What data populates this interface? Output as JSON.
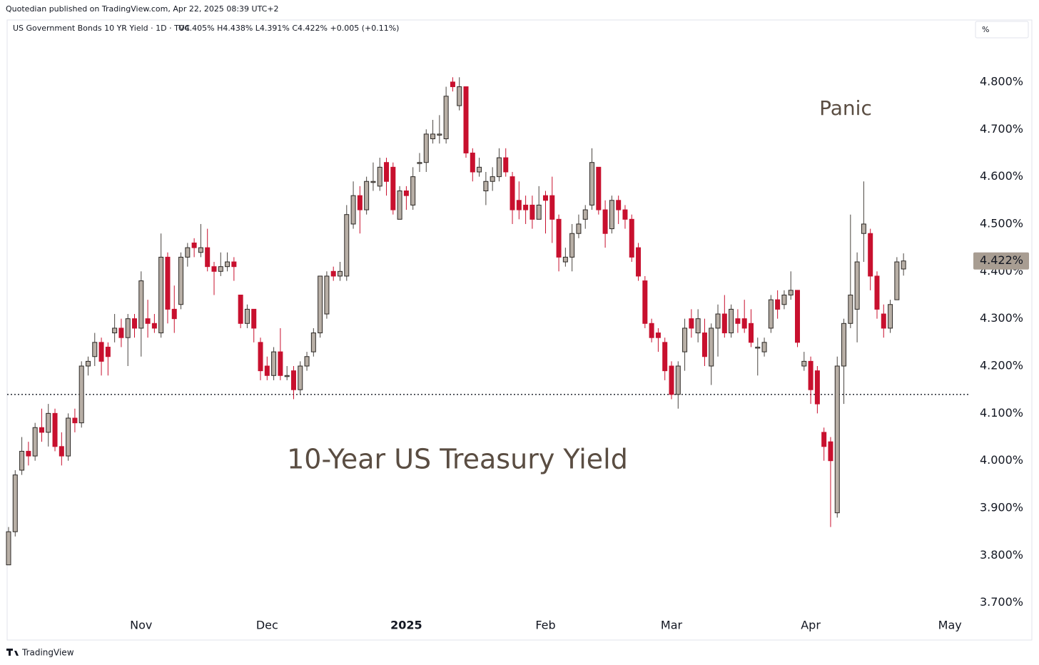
{
  "chart_data": {
    "type": "candlestick",
    "publisher": "Quotedian published on TradingView.com, Apr 22, 2025 08:39 UTC+2",
    "title": "US Government Bonds 10 YR Yield · 1D · TVC",
    "ohlc_summary": "O4.405% H4.438% L4.391% C4.422% +0.005 (+0.11%)",
    "unit": "%",
    "annotations": [
      "Panic",
      "10-Year US Treasury Yield"
    ],
    "footer": "TradingView",
    "up_color": "#b8afa6",
    "down_color": "#c8102e",
    "reference_line": 4.14,
    "last_price": {
      "value": 4.422,
      "label": "4.422%"
    },
    "ylim": [
      3.674,
      4.931
    ],
    "yticks": [
      {
        "value": 3.7,
        "label": "3.700%"
      },
      {
        "value": 3.8,
        "label": "3.800%"
      },
      {
        "value": 3.9,
        "label": "3.900%"
      },
      {
        "value": 4.0,
        "label": "4.000%"
      },
      {
        "value": 4.1,
        "label": "4.100%"
      },
      {
        "value": 4.2,
        "label": "4.200%"
      },
      {
        "value": 4.3,
        "label": "4.300%"
      },
      {
        "value": 4.4,
        "label": "4.400%"
      },
      {
        "value": 4.5,
        "label": "4.500%"
      },
      {
        "value": 4.6,
        "label": "4.600%"
      },
      {
        "value": 4.7,
        "label": "4.700%"
      },
      {
        "value": 4.8,
        "label": "4.800%"
      }
    ],
    "categories": [
      null,
      null,
      null,
      null,
      null,
      null,
      null,
      null,
      null,
      null,
      null,
      null,
      null,
      null,
      null,
      null,
      null,
      null,
      null,
      null,
      "Nov",
      null,
      null,
      null,
      null,
      null,
      null,
      null,
      null,
      null,
      null,
      null,
      null,
      null,
      null,
      null,
      null,
      null,
      null,
      "Dec",
      null,
      null,
      null,
      null,
      null,
      null,
      null,
      null,
      null,
      null,
      null,
      null,
      null,
      null,
      null,
      null,
      null,
      null,
      null,
      null,
      "2025",
      null,
      null,
      null,
      null,
      null,
      null,
      null,
      null,
      null,
      null,
      null,
      null,
      null,
      null,
      null,
      null,
      null,
      null,
      null,
      null,
      "Feb",
      null,
      null,
      null,
      null,
      null,
      null,
      null,
      null,
      null,
      null,
      null,
      null,
      null,
      null,
      null,
      null,
      null,
      null,
      "Mar",
      null,
      null,
      null,
      null,
      null,
      null,
      null,
      null,
      null,
      null,
      null,
      null,
      null,
      null,
      null,
      null,
      null,
      null,
      null,
      null,
      "Apr",
      null,
      null,
      null,
      null,
      null,
      null,
      null,
      null,
      null,
      null,
      null,
      null,
      null,
      null
    ],
    "future_categories": [
      "May"
    ],
    "open": [
      3.78,
      3.85,
      3.98,
      4.02,
      4.01,
      4.07,
      4.06,
      4.1,
      4.03,
      4.01,
      4.09,
      4.08,
      4.2,
      4.22,
      4.25,
      4.24,
      4.27,
      4.28,
      4.26,
      4.3,
      4.28,
      4.3,
      4.29,
      4.27,
      4.43,
      4.32,
      4.33,
      4.43,
      4.46,
      4.44,
      4.45,
      4.41,
      4.4,
      4.41,
      4.42,
      4.35,
      4.29,
      4.32,
      4.25,
      4.2,
      4.18,
      4.23,
      4.18,
      4.19,
      4.15,
      4.2,
      4.23,
      4.27,
      4.31,
      4.4,
      4.39,
      4.39,
      4.5,
      4.56,
      4.53,
      4.59,
      4.58,
      4.63,
      4.62,
      4.51,
      4.57,
      4.54,
      4.63,
      4.63,
      4.68,
      4.69,
      4.68,
      4.8,
      4.75,
      4.79,
      4.65,
      4.61,
      4.57,
      4.59,
      4.6,
      4.64,
      4.6,
      4.55,
      4.54,
      4.54,
      4.51,
      4.56,
      4.56,
      4.51,
      4.42,
      4.43,
      4.48,
      4.51,
      4.54,
      4.62,
      4.53,
      4.49,
      4.55,
      4.53,
      4.51,
      4.45,
      4.38,
      4.29,
      4.27,
      4.25,
      4.2,
      4.14,
      4.23,
      4.3,
      4.27,
      4.27,
      4.2,
      4.28,
      4.31,
      4.27,
      4.3,
      4.3,
      4.29,
      4.24,
      4.23,
      4.28,
      4.34,
      4.33,
      4.35,
      4.36,
      4.2,
      4.21,
      4.19,
      4.06,
      4.04,
      3.89,
      4.2,
      4.29,
      4.32,
      4.48,
      4.48,
      4.39,
      4.31,
      4.28,
      4.34,
      4.405
    ],
    "high": [
      3.86,
      3.98,
      4.05,
      4.04,
      4.08,
      4.11,
      4.12,
      4.11,
      4.06,
      4.1,
      4.11,
      4.21,
      4.22,
      4.27,
      4.26,
      4.25,
      4.31,
      4.3,
      4.31,
      4.31,
      4.4,
      4.34,
      4.31,
      4.48,
      4.44,
      4.37,
      4.44,
      4.46,
      4.47,
      4.5,
      4.49,
      4.42,
      4.44,
      4.44,
      4.43,
      4.35,
      4.33,
      4.32,
      4.26,
      4.22,
      4.24,
      4.28,
      4.2,
      4.2,
      4.21,
      4.23,
      4.28,
      4.39,
      4.4,
      4.41,
      4.42,
      4.54,
      4.59,
      4.58,
      4.6,
      4.63,
      4.64,
      4.64,
      4.63,
      4.58,
      4.58,
      4.62,
      4.65,
      4.7,
      4.72,
      4.73,
      4.79,
      4.81,
      4.81,
      4.79,
      4.66,
      4.64,
      4.61,
      4.62,
      4.66,
      4.66,
      4.61,
      4.59,
      4.56,
      4.56,
      4.58,
      4.57,
      4.6,
      4.52,
      4.45,
      4.5,
      4.52,
      4.54,
      4.66,
      4.62,
      4.55,
      4.56,
      4.56,
      4.54,
      4.52,
      4.46,
      4.39,
      4.3,
      4.28,
      4.26,
      4.21,
      4.21,
      4.3,
      4.32,
      4.32,
      4.3,
      4.29,
      4.33,
      4.35,
      4.33,
      4.32,
      4.34,
      4.32,
      4.26,
      4.26,
      4.35,
      4.36,
      4.36,
      4.4,
      4.36,
      4.23,
      4.22,
      4.2,
      4.07,
      4.05,
      4.22,
      4.3,
      4.52,
      4.44,
      4.59,
      4.49,
      4.4,
      4.33,
      4.34,
      4.43,
      4.438
    ],
    "low": [
      3.78,
      3.84,
      3.97,
      3.99,
      4.0,
      4.04,
      4.03,
      4.02,
      3.99,
      4.0,
      4.06,
      4.07,
      4.18,
      4.2,
      4.18,
      4.18,
      4.25,
      4.24,
      4.2,
      4.26,
      4.22,
      4.26,
      4.27,
      4.26,
      4.29,
      4.27,
      4.32,
      4.41,
      4.43,
      4.43,
      4.4,
      4.35,
      4.39,
      4.4,
      4.38,
      4.28,
      4.28,
      4.25,
      4.17,
      4.17,
      4.17,
      4.17,
      4.17,
      4.13,
      4.14,
      4.19,
      4.22,
      4.26,
      4.3,
      4.38,
      4.38,
      4.38,
      4.49,
      4.48,
      4.52,
      4.57,
      4.57,
      4.56,
      4.52,
      4.51,
      4.53,
      4.53,
      4.61,
      4.61,
      4.67,
      4.67,
      4.67,
      4.78,
      4.74,
      4.64,
      4.59,
      4.6,
      4.54,
      4.57,
      4.59,
      4.6,
      4.5,
      4.51,
      4.5,
      4.49,
      4.51,
      4.48,
      4.46,
      4.4,
      4.41,
      4.4,
      4.47,
      4.49,
      4.53,
      4.52,
      4.45,
      4.48,
      4.5,
      4.49,
      4.42,
      4.38,
      4.28,
      4.25,
      4.23,
      4.17,
      4.13,
      4.11,
      4.19,
      4.26,
      4.25,
      4.2,
      4.16,
      4.22,
      4.26,
      4.26,
      4.27,
      4.27,
      4.24,
      4.18,
      4.22,
      4.27,
      4.3,
      4.32,
      4.34,
      4.24,
      4.19,
      4.12,
      4.1,
      4.0,
      3.86,
      3.88,
      4.12,
      4.28,
      4.25,
      4.42,
      4.36,
      4.3,
      4.26,
      4.27,
      4.34,
      4.391
    ],
    "close": [
      3.85,
      3.97,
      4.02,
      4.01,
      4.07,
      4.06,
      4.1,
      4.03,
      4.01,
      4.09,
      4.08,
      4.2,
      4.21,
      4.25,
      4.21,
      4.22,
      4.28,
      4.26,
      4.3,
      4.28,
      4.38,
      4.29,
      4.28,
      4.43,
      4.32,
      4.3,
      4.43,
      4.45,
      4.45,
      4.45,
      4.41,
      4.4,
      4.41,
      4.42,
      4.41,
      4.29,
      4.32,
      4.28,
      4.19,
      4.18,
      4.23,
      4.18,
      4.18,
      4.15,
      4.2,
      4.22,
      4.27,
      4.39,
      4.39,
      4.39,
      4.4,
      4.52,
      4.56,
      4.53,
      4.59,
      4.59,
      4.62,
      4.59,
      4.53,
      4.57,
      4.56,
      4.6,
      4.63,
      4.69,
      4.69,
      4.69,
      4.77,
      4.79,
      4.79,
      4.65,
      4.61,
      4.62,
      4.59,
      4.6,
      4.64,
      4.61,
      4.53,
      4.53,
      4.53,
      4.51,
      4.54,
      4.55,
      4.51,
      4.43,
      4.43,
      4.48,
      4.5,
      4.53,
      4.63,
      4.53,
      4.48,
      4.55,
      4.53,
      4.51,
      4.43,
      4.39,
      4.29,
      4.26,
      4.26,
      4.19,
      4.14,
      4.2,
      4.28,
      4.28,
      4.3,
      4.22,
      4.28,
      4.31,
      4.27,
      4.32,
      4.29,
      4.28,
      4.25,
      4.24,
      4.25,
      4.34,
      4.32,
      4.35,
      4.36,
      4.25,
      4.21,
      4.15,
      4.12,
      4.03,
      4.0,
      4.2,
      4.29,
      4.35,
      4.42,
      4.5,
      4.39,
      4.32,
      4.28,
      4.33,
      4.42,
      4.422
    ]
  }
}
